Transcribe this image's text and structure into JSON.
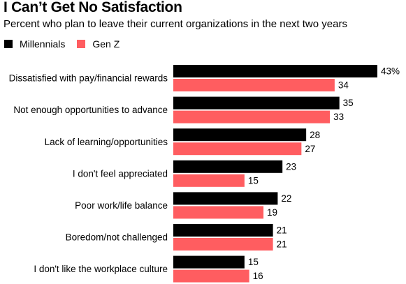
{
  "title": "I Can’t Get No Satisfaction",
  "subtitle": "Percent who plan to leave their current organizations in the next two years",
  "colors": {
    "millennials": "#000000",
    "genz": "#ff5d60"
  },
  "chart_data": {
    "type": "bar",
    "orientation": "horizontal",
    "categories": [
      "Dissatisfied with pay/financial rewards",
      "Not enough opportunities to advance",
      "Lack of learning/opportunities",
      "I don't feel appreciated",
      "Poor work/life balance",
      "Boredom/not challenged",
      "I don't like the workplace culture"
    ],
    "series": [
      {
        "name": "Millennials",
        "values": [
          43,
          35,
          28,
          23,
          22,
          21,
          15
        ],
        "labels": [
          "43%",
          "35",
          "28",
          "23",
          "22",
          "21",
          "15"
        ]
      },
      {
        "name": "Gen Z",
        "values": [
          34,
          33,
          27,
          15,
          19,
          21,
          16
        ],
        "labels": [
          "34",
          "33",
          "27",
          "15",
          "19",
          "21",
          "16"
        ]
      }
    ],
    "unit": "%",
    "xlim": [
      0,
      43
    ],
    "grid": false,
    "legend_position": "top-left"
  }
}
